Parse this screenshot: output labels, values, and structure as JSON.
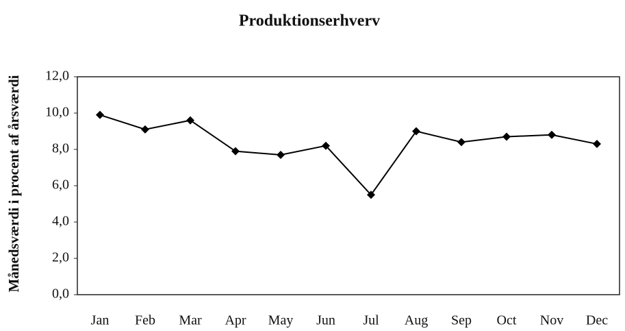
{
  "chart_data": {
    "type": "line",
    "title": "Produktionserhverv",
    "y_label": "Månedsværdi i procent af årsværdi",
    "categories": [
      "Jan",
      "Feb",
      "Mar",
      "Apr",
      "May",
      "Jun",
      "Jul",
      "Aug",
      "Sep",
      "Oct",
      "Nov",
      "Dec"
    ],
    "values": [
      9.9,
      9.1,
      9.6,
      7.9,
      7.7,
      8.2,
      5.5,
      9.0,
      8.4,
      8.7,
      8.8,
      8.3
    ],
    "color": "#000000",
    "ylim": [
      0,
      12
    ],
    "yticks": [
      {
        "value": 0,
        "label": "0,0"
      },
      {
        "value": 2,
        "label": "2,0"
      },
      {
        "value": 4,
        "label": "4,0"
      },
      {
        "value": 6,
        "label": "6,0"
      },
      {
        "value": 8,
        "label": "8,0"
      },
      {
        "value": 10,
        "label": "10,0"
      },
      {
        "value": 12,
        "label": "12,0"
      }
    ],
    "grid": false
  }
}
